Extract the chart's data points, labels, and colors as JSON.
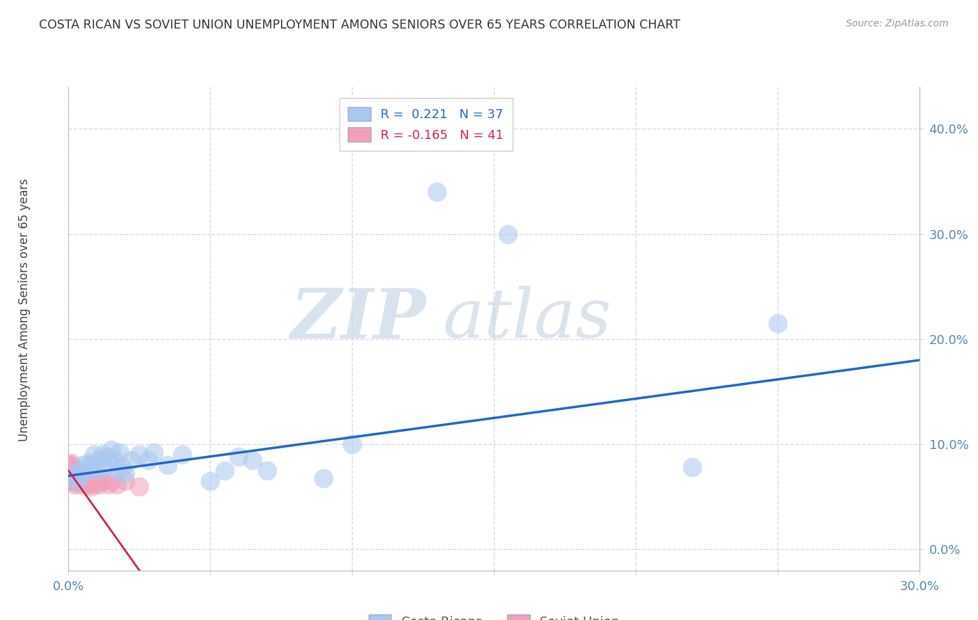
{
  "title": "COSTA RICAN VS SOVIET UNION UNEMPLOYMENT AMONG SENIORS OVER 65 YEARS CORRELATION CHART",
  "source": "Source: ZipAtlas.com",
  "xlim": [
    0.0,
    0.3
  ],
  "ylim": [
    -0.02,
    0.44
  ],
  "ylabel": "Unemployment Among Seniors over 65 years",
  "watermark_zip": "ZIP",
  "watermark_atlas": "atlas",
  "background_color": "#ffffff",
  "grid_color": "#d8d8e8",
  "costa_rica_color": "#a8c8f0",
  "soviet_color": "#f0a0b8",
  "trend_color_cr": "#2266cc",
  "trend_color_su": "#cc2255",
  "cr_R": 0.221,
  "cr_N": 37,
  "su_R": -0.165,
  "su_N": 41,
  "costa_rica_x": [
    0.001,
    0.002,
    0.003,
    0.004,
    0.005,
    0.006,
    0.007,
    0.008,
    0.009,
    0.01,
    0.011,
    0.012,
    0.013,
    0.014,
    0.015,
    0.016,
    0.017,
    0.018,
    0.019,
    0.02,
    0.022,
    0.025,
    0.028,
    0.03,
    0.035,
    0.04,
    0.05,
    0.055,
    0.06,
    0.065,
    0.07,
    0.09,
    0.1,
    0.13,
    0.155,
    0.22,
    0.25
  ],
  "costa_rica_y": [
    0.068,
    0.072,
    0.065,
    0.07,
    0.08,
    0.075,
    0.082,
    0.08,
    0.09,
    0.075,
    0.085,
    0.09,
    0.078,
    0.088,
    0.095,
    0.085,
    0.075,
    0.092,
    0.078,
    0.072,
    0.085,
    0.09,
    0.085,
    0.092,
    0.08,
    0.09,
    0.065,
    0.075,
    0.088,
    0.085,
    0.075,
    0.068,
    0.1,
    0.34,
    0.3,
    0.078,
    0.215
  ],
  "soviet_x": [
    0.0,
    0.0,
    0.0,
    0.001,
    0.001,
    0.001,
    0.001,
    0.001,
    0.001,
    0.001,
    0.001,
    0.001,
    0.001,
    0.002,
    0.002,
    0.002,
    0.002,
    0.002,
    0.002,
    0.003,
    0.003,
    0.003,
    0.003,
    0.004,
    0.004,
    0.005,
    0.005,
    0.006,
    0.006,
    0.007,
    0.007,
    0.008,
    0.009,
    0.01,
    0.011,
    0.012,
    0.014,
    0.015,
    0.017,
    0.02,
    0.025
  ],
  "soviet_y": [
    0.07,
    0.075,
    0.08,
    0.065,
    0.07,
    0.072,
    0.075,
    0.078,
    0.08,
    0.082,
    0.065,
    0.068,
    0.07,
    0.062,
    0.065,
    0.068,
    0.07,
    0.072,
    0.075,
    0.065,
    0.068,
    0.07,
    0.072,
    0.062,
    0.065,
    0.065,
    0.068,
    0.062,
    0.065,
    0.062,
    0.065,
    0.06,
    0.062,
    0.065,
    0.062,
    0.065,
    0.062,
    0.065,
    0.062,
    0.065,
    0.06
  ],
  "cr_trend_x0": 0.0,
  "cr_trend_y0": 0.07,
  "cr_trend_x1": 0.3,
  "cr_trend_y1": 0.18,
  "su_trend_x0": 0.0,
  "su_trend_y0": 0.075,
  "su_trend_x1": 0.025,
  "su_trend_y1": -0.02
}
